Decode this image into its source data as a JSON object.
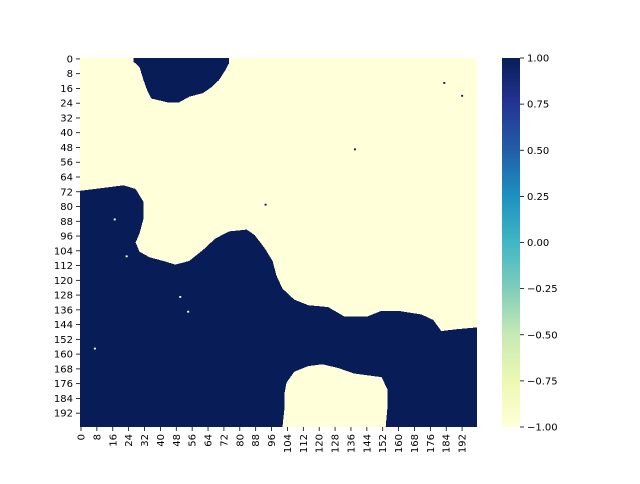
{
  "chart_data": {
    "type": "heatmap",
    "title": "",
    "xlabel": "",
    "ylabel": "",
    "grid_size": [
      200,
      200
    ],
    "x_tick_labels": [
      "0",
      "8",
      "16",
      "24",
      "32",
      "40",
      "48",
      "56",
      "64",
      "72",
      "80",
      "88",
      "96",
      "104",
      "112",
      "120",
      "128",
      "136",
      "144",
      "152",
      "160",
      "168",
      "176",
      "184",
      "192"
    ],
    "y_tick_labels": [
      "0",
      "8",
      "16",
      "24",
      "32",
      "40",
      "48",
      "56",
      "64",
      "72",
      "80",
      "88",
      "96",
      "104",
      "112",
      "120",
      "128",
      "136",
      "144",
      "152",
      "160",
      "168",
      "176",
      "184",
      "192"
    ],
    "colorbar": {
      "range": [
        -1.0,
        1.0
      ],
      "tick_labels": [
        "1.00",
        "0.75",
        "0.50",
        "0.25",
        "0.00",
        "−0.25",
        "−0.50",
        "−0.75",
        "−1.00"
      ],
      "colormap": "YlGnBu",
      "colors": [
        "#ffffd9",
        "#edf8b1",
        "#c7e9b4",
        "#7fcdbb",
        "#41b6c4",
        "#1d91c0",
        "#225ea8",
        "#253494",
        "#081d58"
      ]
    },
    "value_high": 1.0,
    "value_low": -1.0,
    "high_color": "#081d58",
    "low_color": "#ffffd9",
    "high_regions": [
      {
        "name": "top-blob",
        "boundary": [
          [
            27,
            0
          ],
          [
            75,
            0
          ],
          [
            75,
            3
          ],
          [
            73,
            7
          ],
          [
            70,
            12
          ],
          [
            66,
            16
          ],
          [
            62,
            19
          ],
          [
            55,
            21
          ],
          [
            50,
            24
          ],
          [
            44,
            24
          ],
          [
            36,
            22
          ],
          [
            34,
            18
          ],
          [
            32,
            12
          ],
          [
            30,
            5
          ],
          [
            27,
            2
          ]
        ]
      },
      {
        "name": "lower-mass",
        "boundary": [
          [
            0,
            72
          ],
          [
            22,
            69
          ],
          [
            28,
            71
          ],
          [
            32,
            78
          ],
          [
            32,
            87
          ],
          [
            30,
            95
          ],
          [
            28,
            100
          ],
          [
            30,
            105
          ],
          [
            35,
            108
          ],
          [
            42,
            110
          ],
          [
            48,
            112
          ],
          [
            55,
            110
          ],
          [
            62,
            104
          ],
          [
            68,
            98
          ],
          [
            75,
            94
          ],
          [
            84,
            93
          ],
          [
            88,
            96
          ],
          [
            93,
            103
          ],
          [
            97,
            110
          ],
          [
            99,
            118
          ],
          [
            102,
            125
          ],
          [
            108,
            131
          ],
          [
            115,
            134
          ],
          [
            125,
            135
          ],
          [
            133,
            140
          ],
          [
            145,
            140
          ],
          [
            152,
            137
          ],
          [
            160,
            137
          ],
          [
            172,
            139
          ],
          [
            178,
            142
          ],
          [
            182,
            148
          ],
          [
            190,
            147
          ],
          [
            200,
            146
          ],
          [
            200,
            200
          ],
          [
            154,
            200
          ],
          [
            155,
            188
          ],
          [
            155,
            180
          ],
          [
            152,
            173
          ],
          [
            145,
            172
          ],
          [
            138,
            171
          ],
          [
            130,
            168
          ],
          [
            122,
            166
          ],
          [
            115,
            167
          ],
          [
            108,
            170
          ],
          [
            104,
            176
          ],
          [
            103,
            182
          ],
          [
            103,
            190
          ],
          [
            102,
            200
          ],
          [
            0,
            200
          ]
        ]
      }
    ],
    "low_holes_in_high": [
      [
        17,
        87
      ],
      [
        23,
        107
      ],
      [
        50,
        129
      ],
      [
        54,
        137
      ],
      [
        7,
        157
      ],
      [
        38,
        94
      ]
    ],
    "high_specks_in_low": [
      [
        183,
        13
      ],
      [
        192,
        20
      ],
      [
        138,
        49
      ],
      [
        93,
        79
      ],
      [
        131,
        156
      ],
      [
        176,
        178
      ]
    ]
  }
}
